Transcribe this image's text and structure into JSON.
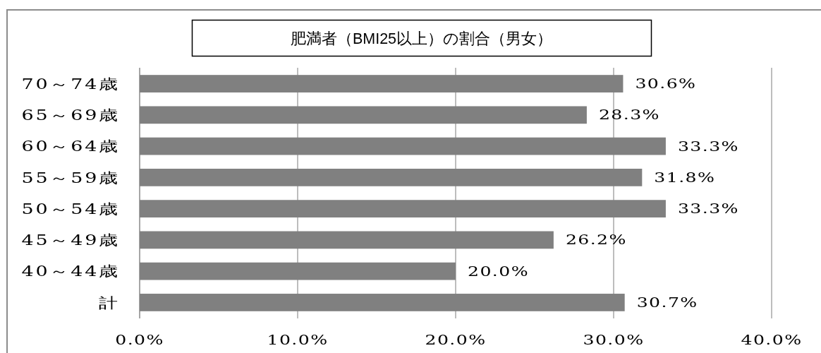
{
  "chart_data": {
    "type": "bar",
    "orientation": "horizontal",
    "title": "肥満者（BMI25以上）の割合（男女）",
    "categories": [
      "70～74歳",
      "65～69歳",
      "60～64歳",
      "55～59歳",
      "50～54歳",
      "45～49歳",
      "40～44歳",
      "計"
    ],
    "values": [
      30.6,
      28.3,
      33.3,
      31.8,
      33.3,
      26.2,
      20.0,
      30.7
    ],
    "value_labels": [
      "30.6%",
      "28.3%",
      "33.3%",
      "31.8%",
      "33.3%",
      "26.2%",
      "20.0%",
      "30.7%"
    ],
    "color": "#808080",
    "xlim": [
      0,
      40
    ],
    "xticks": [
      {
        "value": 0,
        "label": "0.0%"
      },
      {
        "value": 10,
        "label": "10.0%"
      },
      {
        "value": 20,
        "label": "20.0%"
      },
      {
        "value": 30,
        "label": "30.0%"
      },
      {
        "value": 40,
        "label": "40.0%"
      }
    ],
    "grid": "x"
  }
}
